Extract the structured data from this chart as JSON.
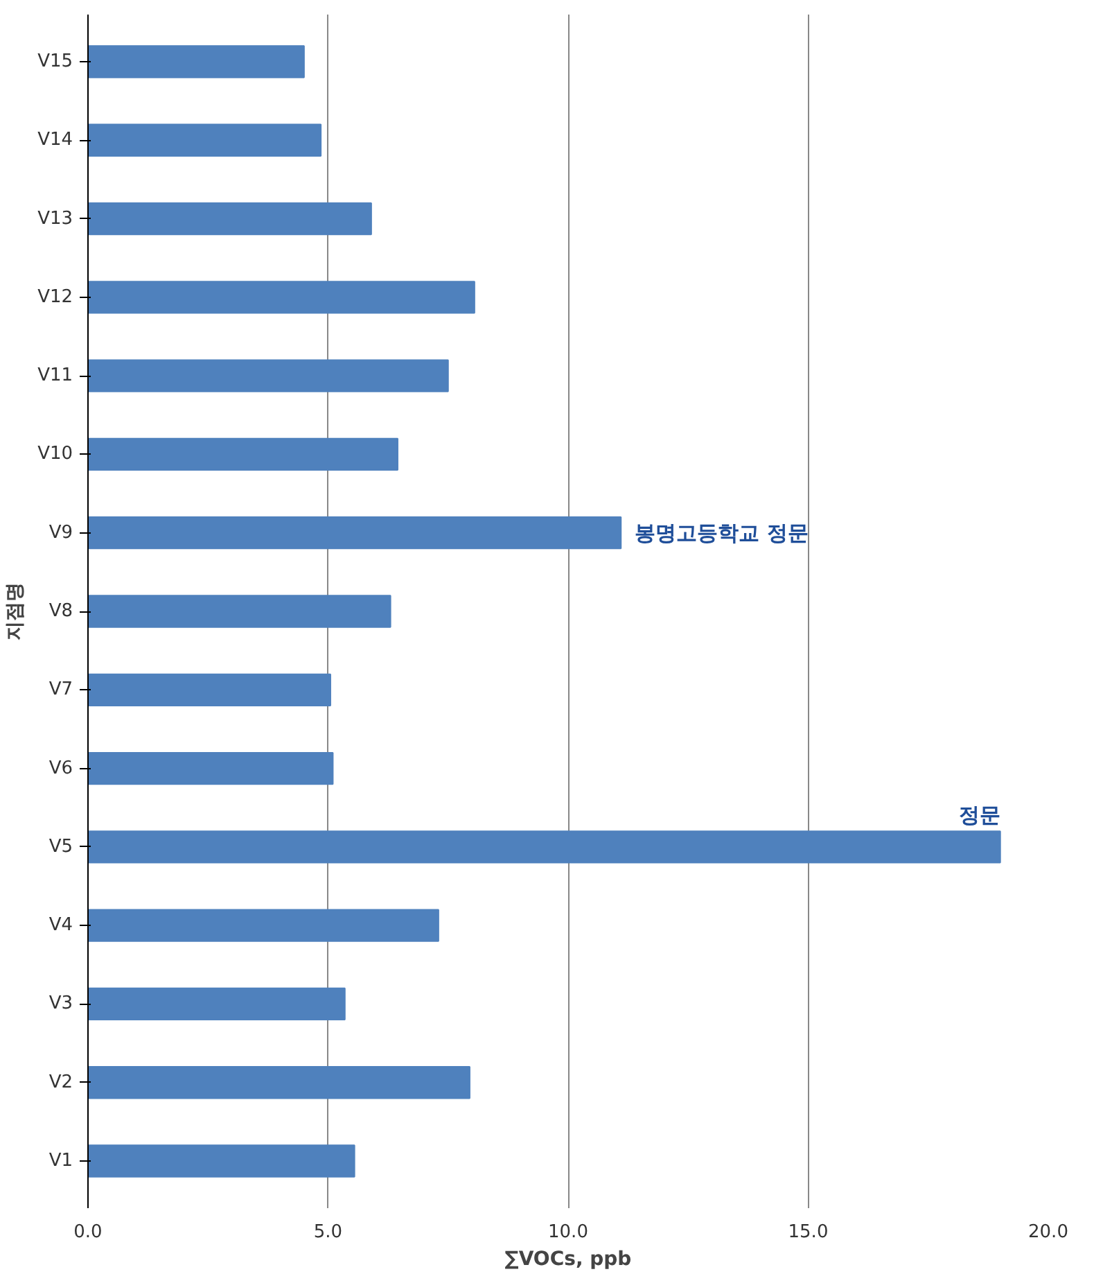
{
  "chart_data": {
    "type": "bar",
    "orientation": "horizontal",
    "xlabel": "∑VOCs, ppb",
    "ylabel": "지점명",
    "categories": [
      "V15",
      "V14",
      "V13",
      "V12",
      "V11",
      "V10",
      "V9",
      "V8",
      "V7",
      "V6",
      "V5",
      "V4",
      "V3",
      "V2",
      "V1"
    ],
    "values": [
      4.5,
      4.85,
      5.9,
      8.05,
      7.5,
      6.45,
      11.1,
      6.3,
      5.05,
      5.1,
      19.0,
      7.3,
      5.35,
      7.95,
      5.55
    ],
    "color": "#4f81bd",
    "xlim": [
      0,
      20
    ],
    "xticks": [
      {
        "value": 0,
        "label": "0.0"
      },
      {
        "value": 5,
        "label": "5.0"
      },
      {
        "value": 10,
        "label": "10.0"
      },
      {
        "value": 15,
        "label": "15.0"
      },
      {
        "value": 20,
        "label": "20.0"
      }
    ],
    "grid": "x",
    "annotations": [
      {
        "text": "봉명고등학교 정문",
        "x": 11.1,
        "y": "V9"
      },
      {
        "text": "정문",
        "x": 19.0,
        "y": "V5"
      }
    ]
  }
}
